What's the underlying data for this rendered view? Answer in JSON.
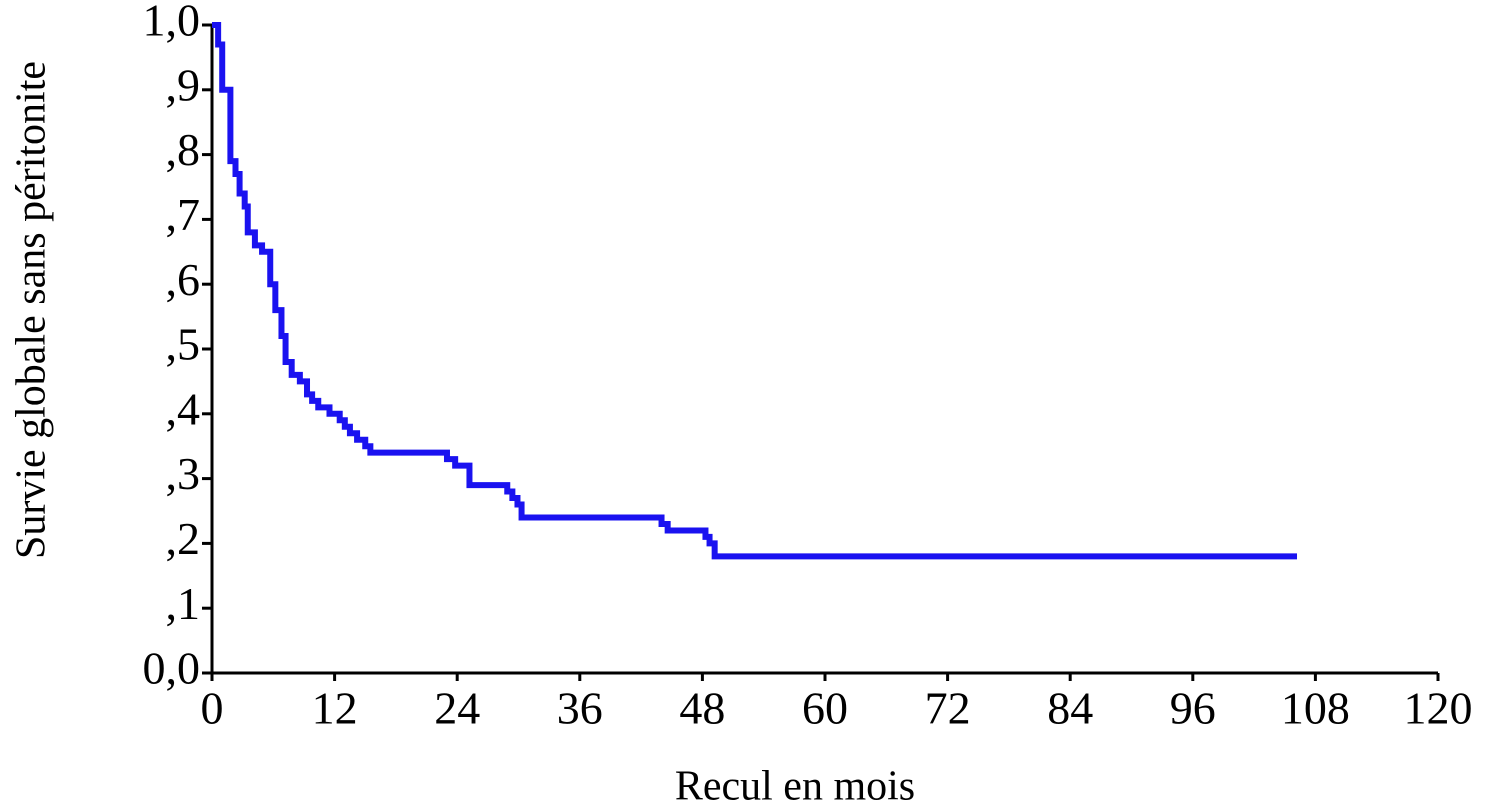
{
  "chart_data": {
    "type": "step",
    "x_label": "Recul en mois",
    "y_label": "Survie globale sans péritonite",
    "xlim": [
      0,
      120
    ],
    "xticks": [
      0,
      12,
      24,
      36,
      48,
      60,
      72,
      84,
      96,
      108,
      120
    ],
    "ylim": [
      0,
      1
    ],
    "yticks": [
      {
        "value": 0,
        "label": "0,0"
      },
      {
        "value": 0.1,
        "label": ",1"
      },
      {
        "value": 0.2,
        "label": ",2"
      },
      {
        "value": 0.3,
        "label": ",3"
      },
      {
        "value": 0.4,
        "label": ",4"
      },
      {
        "value": 0.5,
        "label": ",5"
      },
      {
        "value": 0.6,
        "label": ",6"
      },
      {
        "value": 0.7,
        "label": ",7"
      },
      {
        "value": 0.8,
        "label": ",8"
      },
      {
        "value": 0.9,
        "label": ",9"
      },
      {
        "value": 1.0,
        "label": "1,0"
      }
    ],
    "color": "#1a12f0",
    "x": [
      0,
      0.6,
      1.0,
      1.8,
      2.3,
      2.7,
      3.2,
      3.5,
      4.2,
      4.9,
      5.7,
      6.2,
      6.8,
      7.2,
      7.8,
      8.6,
      9.3,
      9.8,
      10.4,
      11.5,
      12.5,
      13.0,
      13.5,
      14.2,
      15.0,
      15.5,
      23.0,
      23.8,
      25.2,
      28.9,
      29.4,
      29.9,
      30.3,
      44.0,
      44.6,
      48.3,
      48.7,
      49.2,
      106.2
    ],
    "values": [
      1.0,
      0.97,
      0.9,
      0.79,
      0.77,
      0.74,
      0.72,
      0.68,
      0.66,
      0.65,
      0.6,
      0.56,
      0.52,
      0.48,
      0.46,
      0.45,
      0.43,
      0.42,
      0.41,
      0.4,
      0.39,
      0.38,
      0.37,
      0.36,
      0.35,
      0.34,
      0.33,
      0.32,
      0.29,
      0.28,
      0.27,
      0.26,
      0.24,
      0.23,
      0.22,
      0.21,
      0.2,
      0.18,
      0.18
    ]
  }
}
